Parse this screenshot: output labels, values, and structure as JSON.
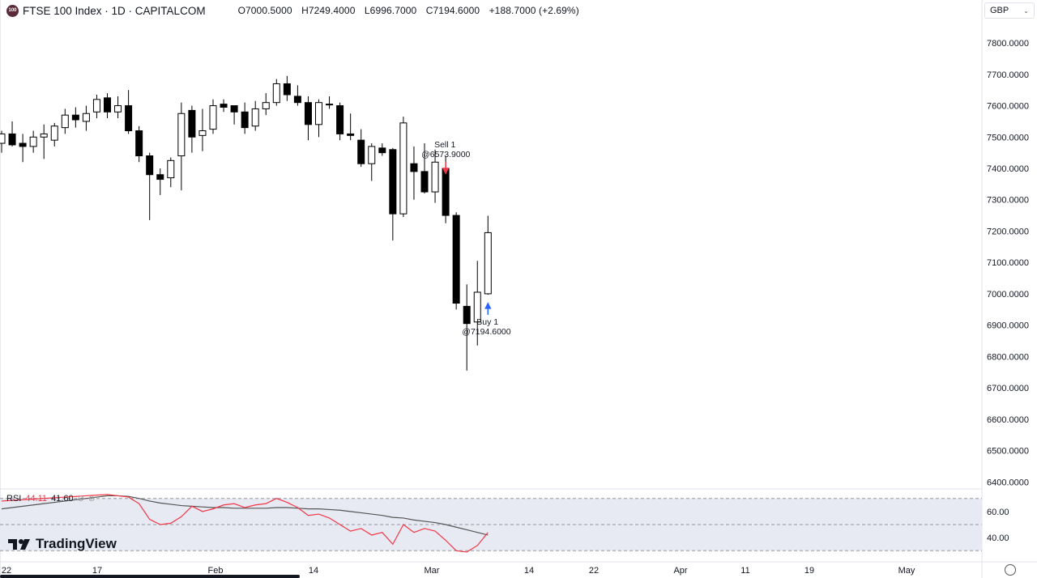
{
  "header": {
    "badge": "100",
    "title": "FTSE 100 Index · 1D · CAPITALCOM",
    "open": "O7000.5000",
    "high": "H7249.4000",
    "low": "L6996.7000",
    "close": "C7194.6000",
    "change": "+188.7000 (+2.69%)"
  },
  "currency": "GBP",
  "rsi_legend": {
    "label": "RSI",
    "value": "44.11",
    "ma_value": "41.60"
  },
  "logo_text": "TradingView",
  "colors": {
    "up": "#ffffff",
    "down": "#000000",
    "rsi": "#f23645",
    "rsi_ma": "#555555",
    "rsi_band": "#e7e9f3",
    "sell": "#f23645",
    "buy": "#2962ff"
  },
  "chart_data": {
    "type": "candlestick",
    "y_axis": {
      "range": [
        6380,
        7870
      ],
      "ticks": [
        "7800.0000",
        "7700.0000",
        "7600.0000",
        "7500.0000",
        "7400.0000",
        "7300.0000",
        "7200.0000",
        "7100.0000",
        "7000.0000",
        "6900.0000",
        "6800.0000",
        "6700.0000",
        "6600.0000",
        "6500.0000",
        "6400.0000"
      ]
    },
    "x_axis_labels": [
      "22",
      "17",
      "Feb",
      "14",
      "Mar",
      "14",
      "22",
      "Apr",
      "11",
      "19",
      "May"
    ],
    "candles": [
      {
        "o": 7480,
        "h": 7520,
        "l": 7450,
        "c": 7510
      },
      {
        "o": 7510,
        "h": 7550,
        "l": 7470,
        "c": 7475
      },
      {
        "o": 7480,
        "h": 7510,
        "l": 7420,
        "c": 7470
      },
      {
        "o": 7470,
        "h": 7520,
        "l": 7450,
        "c": 7500
      },
      {
        "o": 7500,
        "h": 7540,
        "l": 7430,
        "c": 7510
      },
      {
        "o": 7490,
        "h": 7545,
        "l": 7470,
        "c": 7535
      },
      {
        "o": 7530,
        "h": 7590,
        "l": 7510,
        "c": 7570
      },
      {
        "o": 7570,
        "h": 7595,
        "l": 7530,
        "c": 7555
      },
      {
        "o": 7550,
        "h": 7600,
        "l": 7520,
        "c": 7575
      },
      {
        "o": 7580,
        "h": 7635,
        "l": 7560,
        "c": 7620
      },
      {
        "o": 7625,
        "h": 7640,
        "l": 7560,
        "c": 7580
      },
      {
        "o": 7580,
        "h": 7630,
        "l": 7560,
        "c": 7600
      },
      {
        "o": 7600,
        "h": 7650,
        "l": 7510,
        "c": 7520
      },
      {
        "o": 7520,
        "h": 7535,
        "l": 7420,
        "c": 7440
      },
      {
        "o": 7440,
        "h": 7450,
        "l": 7235,
        "c": 7380
      },
      {
        "o": 7380,
        "h": 7400,
        "l": 7315,
        "c": 7365
      },
      {
        "o": 7370,
        "h": 7435,
        "l": 7340,
        "c": 7425
      },
      {
        "o": 7440,
        "h": 7610,
        "l": 7330,
        "c": 7575
      },
      {
        "o": 7585,
        "h": 7600,
        "l": 7450,
        "c": 7500
      },
      {
        "o": 7505,
        "h": 7590,
        "l": 7455,
        "c": 7520
      },
      {
        "o": 7525,
        "h": 7620,
        "l": 7510,
        "c": 7600
      },
      {
        "o": 7605,
        "h": 7620,
        "l": 7580,
        "c": 7595
      },
      {
        "o": 7600,
        "h": 7600,
        "l": 7540,
        "c": 7580
      },
      {
        "o": 7580,
        "h": 7610,
        "l": 7510,
        "c": 7530
      },
      {
        "o": 7535,
        "h": 7615,
        "l": 7520,
        "c": 7590
      },
      {
        "o": 7590,
        "h": 7640,
        "l": 7570,
        "c": 7610
      },
      {
        "o": 7610,
        "h": 7685,
        "l": 7600,
        "c": 7670
      },
      {
        "o": 7670,
        "h": 7695,
        "l": 7615,
        "c": 7635
      },
      {
        "o": 7630,
        "h": 7665,
        "l": 7600,
        "c": 7610
      },
      {
        "o": 7610,
        "h": 7630,
        "l": 7490,
        "c": 7540
      },
      {
        "o": 7540,
        "h": 7620,
        "l": 7500,
        "c": 7610
      },
      {
        "o": 7605,
        "h": 7630,
        "l": 7590,
        "c": 7605
      },
      {
        "o": 7600,
        "h": 7610,
        "l": 7490,
        "c": 7510
      },
      {
        "o": 7510,
        "h": 7575,
        "l": 7490,
        "c": 7505
      },
      {
        "o": 7490,
        "h": 7525,
        "l": 7405,
        "c": 7415
      },
      {
        "o": 7415,
        "h": 7480,
        "l": 7360,
        "c": 7470
      },
      {
        "o": 7465,
        "h": 7480,
        "l": 7440,
        "c": 7450
      },
      {
        "o": 7460,
        "h": 7465,
        "l": 7170,
        "c": 7255
      },
      {
        "o": 7255,
        "h": 7565,
        "l": 7245,
        "c": 7545
      },
      {
        "o": 7415,
        "h": 7470,
        "l": 7300,
        "c": 7390
      },
      {
        "o": 7390,
        "h": 7480,
        "l": 7320,
        "c": 7325
      },
      {
        "o": 7325,
        "h": 7460,
        "l": 7290,
        "c": 7420
      },
      {
        "o": 7400,
        "h": 7440,
        "l": 7225,
        "c": 7250
      },
      {
        "o": 7250,
        "h": 7260,
        "l": 6950,
        "c": 6970
      },
      {
        "o": 6960,
        "h": 7030,
        "l": 6755,
        "c": 6905
      },
      {
        "o": 6910,
        "h": 7105,
        "l": 6835,
        "c": 7005
      },
      {
        "o": 7000,
        "h": 7249,
        "l": 6997,
        "c": 7195
      }
    ],
    "markers": [
      {
        "type": "sell",
        "label": "Sell 1",
        "price": "@6573.9000",
        "candle": 42
      },
      {
        "type": "buy",
        "label": "Buy 1",
        "price": "@7194.6000",
        "candle": 46
      }
    ],
    "rsi": {
      "y_ticks": [
        "60.00",
        "40.00"
      ],
      "levels": [
        70,
        50,
        30
      ],
      "range": [
        24,
        76
      ],
      "rsi_values": [
        68,
        68.5,
        69,
        69.5,
        70,
        70.5,
        71,
        71.5,
        72,
        72.5,
        73,
        72,
        71,
        66,
        54,
        50,
        51,
        56,
        64,
        60,
        62,
        65,
        66,
        63,
        65,
        66,
        70,
        67,
        63,
        57,
        58,
        55,
        50,
        45,
        47,
        42,
        44,
        35,
        50,
        44,
        47,
        45,
        38,
        30,
        29,
        34,
        44
      ],
      "ma_values": [
        62,
        63,
        64,
        65,
        66,
        67,
        68,
        69,
        70,
        71,
        72,
        72,
        71.5,
        70,
        68,
        66.5,
        65.5,
        64.5,
        64,
        63.5,
        63,
        63,
        62.5,
        62.5,
        62.5,
        62.5,
        63,
        63,
        62.5,
        62,
        62,
        61.5,
        61,
        60,
        59,
        58,
        57,
        55.5,
        55,
        53.5,
        52.5,
        51.5,
        50,
        48,
        46,
        44,
        42
      ]
    }
  }
}
